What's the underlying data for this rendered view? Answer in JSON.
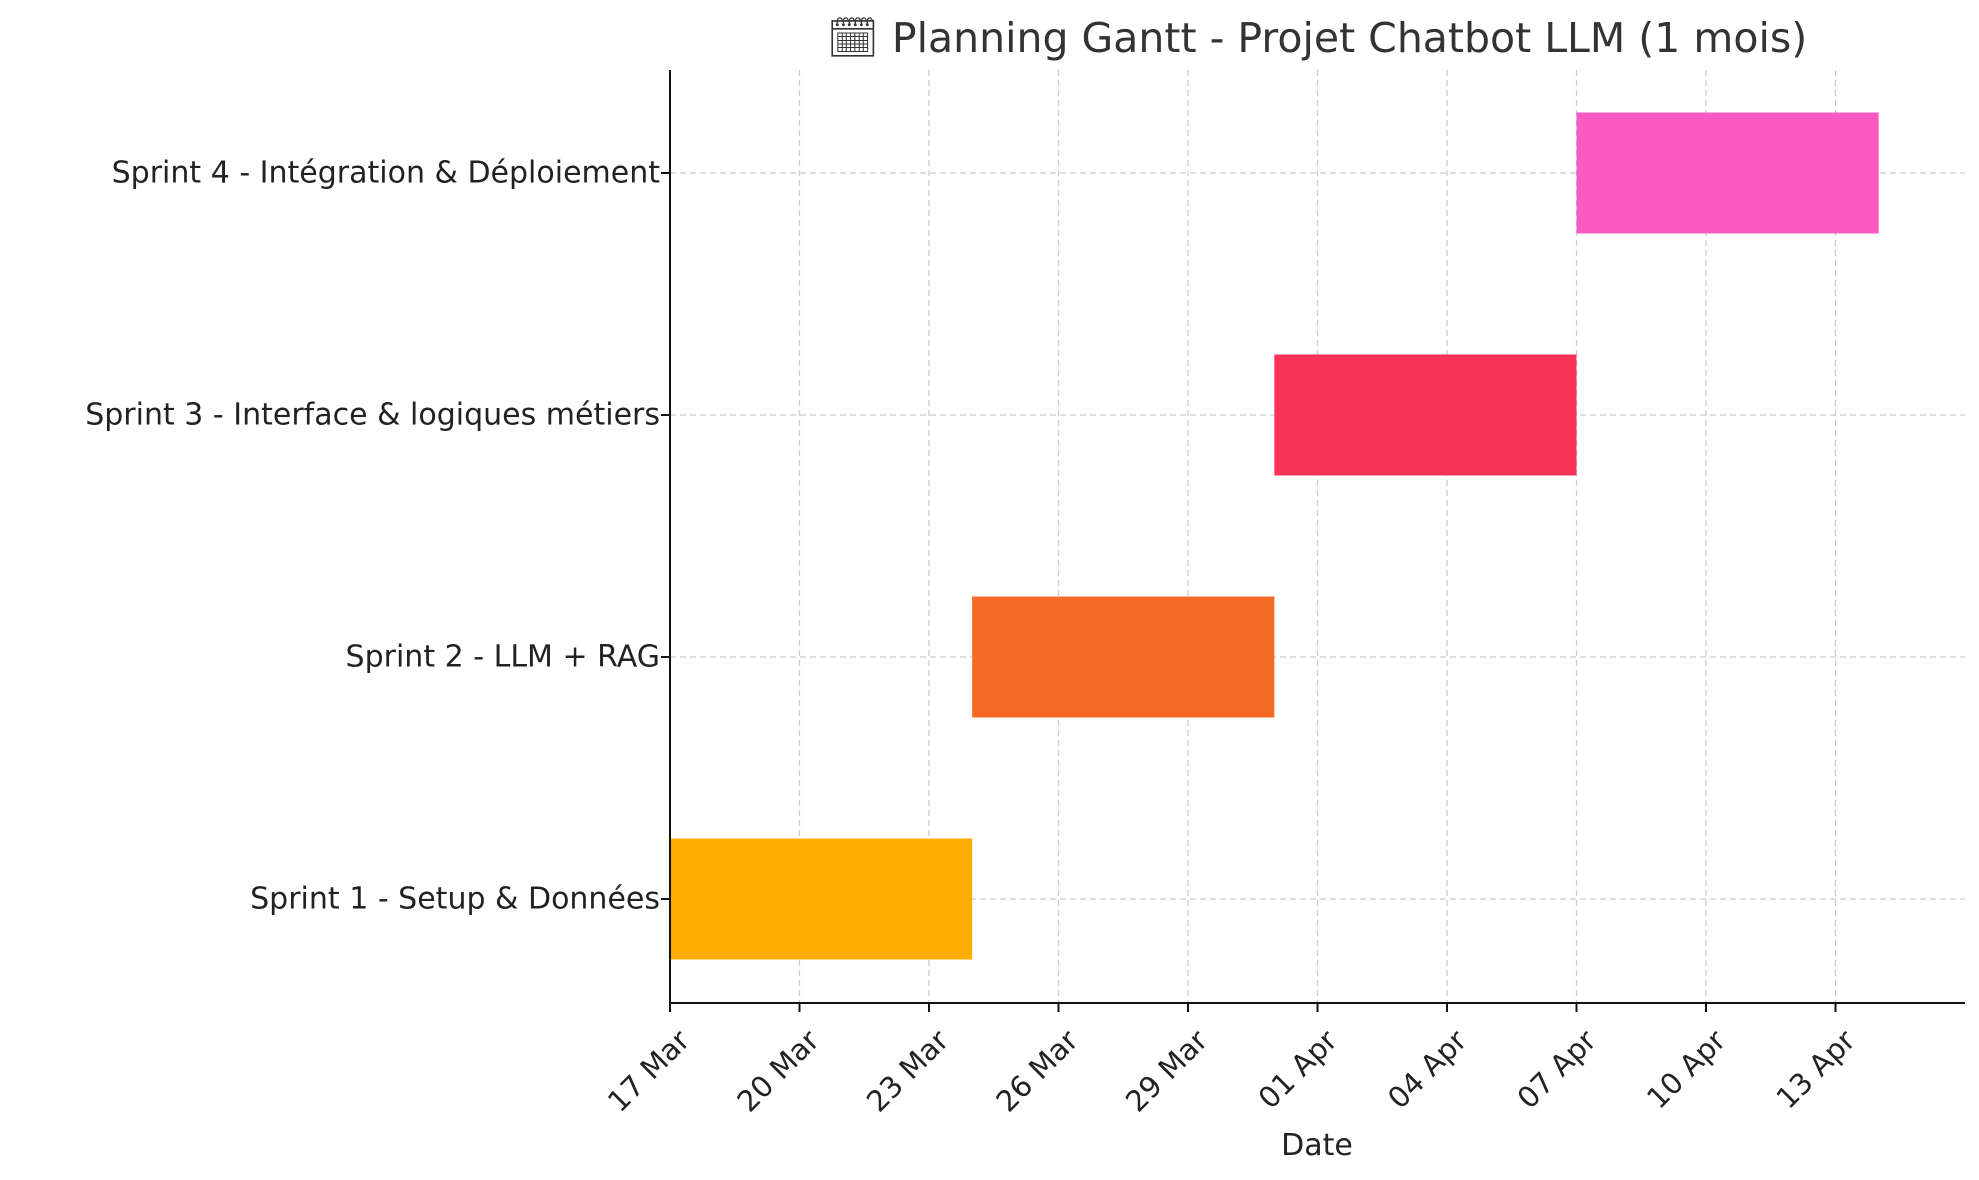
{
  "chart_data": {
    "type": "gantt",
    "title": "🗓 Planning Gantt - Projet Chatbot LLM (1 mois)",
    "xlabel": "Date",
    "ylabel": "",
    "x_ticks": [
      "17 Mar",
      "20 Mar",
      "23 Mar",
      "26 Mar",
      "29 Mar",
      "01 Apr",
      "04 Apr",
      "07 Apr",
      "10 Apr",
      "13 Apr"
    ],
    "xlim": [
      "17 Mar",
      "16 Apr"
    ],
    "grid": true,
    "tasks": [
      {
        "name": "Sprint 1 - Setup & Données",
        "start": "17 Mar",
        "end": "24 Mar",
        "color": "#FFAD00"
      },
      {
        "name": "Sprint 2 - LLM + RAG",
        "start": "24 Mar",
        "end": "31 Mar",
        "color": "#F56A24"
      },
      {
        "name": "Sprint 3 - Interface & logiques métiers",
        "start": "31 Mar",
        "end": "07 Apr",
        "color": "#F93257"
      },
      {
        "name": "Sprint 4 - Intégration & Déploiement",
        "start": "07 Apr",
        "end": "14 Apr",
        "color": "#F859C2"
      }
    ]
  }
}
